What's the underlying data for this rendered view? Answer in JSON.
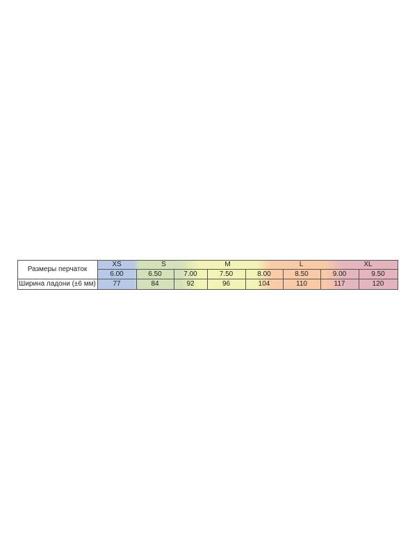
{
  "table": {
    "row_header_sizes": "Размеры перчаток",
    "row_header_width": "Ширина ладони (±6 мм)",
    "size_groups": [
      "XS",
      "S",
      "M",
      "L",
      "XL"
    ],
    "sizes": [
      "6.00",
      "6.50",
      "7.00",
      "7.50",
      "8.00",
      "8.50",
      "9.00",
      "9.50"
    ],
    "palm_widths": [
      "77",
      "84",
      "92",
      "96",
      "104",
      "110",
      "117",
      "120"
    ],
    "colors": {
      "XS": "#b7c9e6",
      "S": "#d3e1b8",
      "M": "#f2f4b6",
      "L": "#fac9a6",
      "XL": "#e3b4bc"
    }
  }
}
